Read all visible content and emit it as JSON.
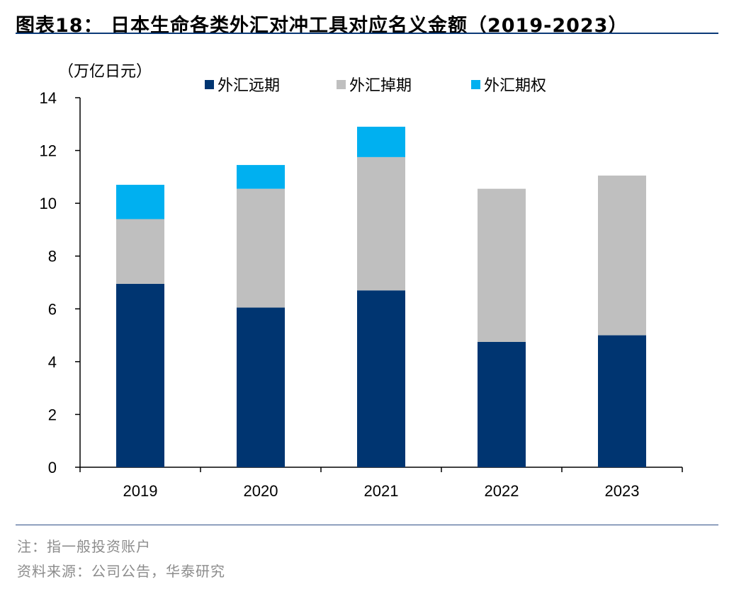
{
  "title": "图表18： 日本生命各类外汇对冲工具对应名义金额（2019-2023）",
  "note": "注：指一般投资账户",
  "source": "资料来源：公司公告，华泰研究",
  "chart_data": {
    "type": "bar",
    "stacked": true,
    "unit_label": "（万亿日元）",
    "categories": [
      "2019",
      "2020",
      "2021",
      "2022",
      "2023"
    ],
    "series": [
      {
        "name": "外汇远期",
        "color": "#003571",
        "values": [
          6.95,
          6.05,
          6.7,
          4.75,
          5.0
        ]
      },
      {
        "name": "外汇掉期",
        "color": "#bfbfbf",
        "values": [
          2.45,
          4.5,
          5.05,
          5.8,
          6.05
        ]
      },
      {
        "name": "外汇期权",
        "color": "#00b0f0",
        "values": [
          1.3,
          0.9,
          1.15,
          0,
          0
        ]
      }
    ],
    "ylim": [
      0,
      14
    ],
    "yticks": [
      0,
      2,
      4,
      6,
      8,
      10,
      12,
      14
    ],
    "legend_position": "top"
  }
}
